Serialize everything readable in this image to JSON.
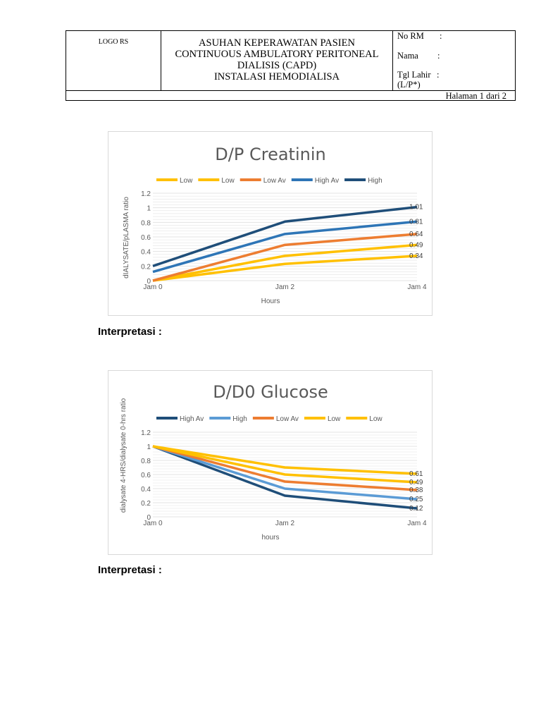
{
  "header": {
    "logo": "LOGO RS",
    "title_lines": [
      "ASUHAN KEPERAWATAN PASIEN",
      "CONTINUOUS AMBULATORY PERITONEAL",
      "DIALISIS (CAPD)",
      "INSTALASI HEMODIALISA"
    ],
    "fields": [
      {
        "label": "No RM",
        "sep": ":"
      },
      {
        "label": "Nama",
        "sep": ":"
      },
      {
        "label": "Tgl Lahir",
        "sep": ":"
      },
      {
        "label": "(L/P*)",
        "sep": ""
      }
    ],
    "page": "Halaman 1 dari 2"
  },
  "interpretasi": "Interpretasi :",
  "chart_data": [
    {
      "type": "line",
      "title": "D/P Creatinin",
      "xlabel": "Hours",
      "ylabel": "dIALYSATE/pLASMA ratio",
      "categories": [
        "Jam 0",
        "Jam 2",
        "Jam 4"
      ],
      "ylim": [
        0,
        1.2
      ],
      "yticks": [
        "0",
        "0.2",
        "0.4",
        "0.6",
        "0.8",
        "1",
        "1.2"
      ],
      "grid": true,
      "legend": "top",
      "series": [
        {
          "name": "Low",
          "color": "#FFC000",
          "values": [
            0,
            0.23,
            0.34
          ],
          "end_label": "0.34"
        },
        {
          "name": "Low",
          "color": "#FFC000",
          "values": [
            0,
            0.34,
            0.49
          ],
          "end_label": "0.49"
        },
        {
          "name": "Low Av",
          "color": "#ED7D31",
          "values": [
            0,
            0.49,
            0.64
          ],
          "end_label": "0.64"
        },
        {
          "name": "High Av",
          "color": "#2E75B6",
          "values": [
            0.12,
            0.64,
            0.81
          ],
          "end_label": "0.81"
        },
        {
          "name": "High",
          "color": "#1F4E79",
          "values": [
            0.2,
            0.81,
            1.01
          ],
          "end_label": "1.01"
        }
      ]
    },
    {
      "type": "line",
      "title": "D/D0 Glucose",
      "xlabel": "hours",
      "ylabel": "dialysate 4-HRS/dialysate 0-hrs ratio",
      "categories": [
        "Jam 0",
        "Jam 2",
        "Jam 4"
      ],
      "ylim": [
        0,
        1.2
      ],
      "yticks": [
        "0",
        "0.2",
        "0.4",
        "0.6",
        "0.8",
        "1",
        "1.2"
      ],
      "grid": true,
      "legend": "top",
      "series": [
        {
          "name": "High Av",
          "color": "#1F4E79",
          "values": [
            1,
            0.3,
            0.12
          ],
          "end_label": "0.12"
        },
        {
          "name": "High",
          "color": "#5B9BD5",
          "values": [
            1,
            0.4,
            0.25
          ],
          "end_label": "0.25"
        },
        {
          "name": "Low Av",
          "color": "#ED7D31",
          "values": [
            1,
            0.5,
            0.38
          ],
          "end_label": "0.38"
        },
        {
          "name": "Low",
          "color": "#FFC000",
          "values": [
            1,
            0.6,
            0.49
          ],
          "end_label": "0.49"
        },
        {
          "name": "Low",
          "color": "#FFC000",
          "values": [
            1,
            0.7,
            0.61
          ],
          "end_label": "0.61"
        }
      ]
    }
  ]
}
